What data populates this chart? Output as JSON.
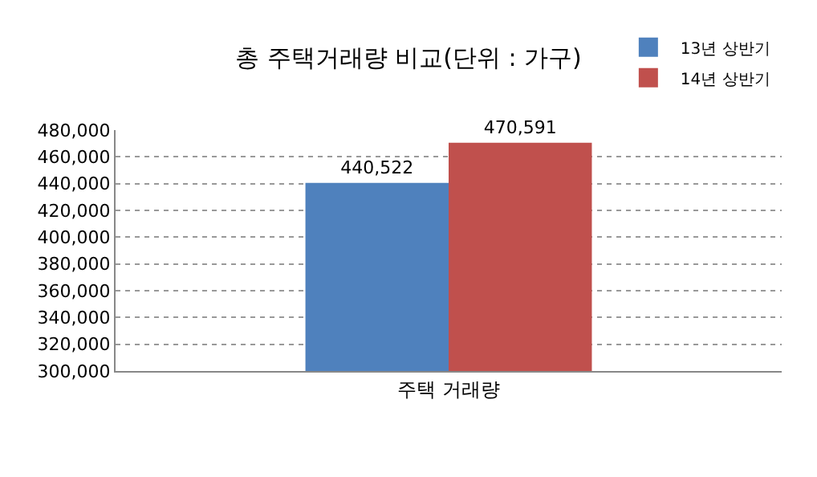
{
  "chart_data": {
    "type": "bar",
    "title": "총 주택거래량 비교(단위 : 가구)",
    "categories": [
      "주택 거래량"
    ],
    "series": [
      {
        "name": "13년 상반기",
        "color": "#4f81bd",
        "values": [
          440522
        ],
        "value_labels": [
          "440,522"
        ]
      },
      {
        "name": "14년 상반기",
        "color": "#c0504d",
        "values": [
          470591
        ],
        "value_labels": [
          "470,591"
        ]
      }
    ],
    "ylim": [
      300000,
      480000
    ],
    "yticks": [
      {
        "value": 300000,
        "label": "300,000"
      },
      {
        "value": 320000,
        "label": "320,000"
      },
      {
        "value": 340000,
        "label": "340,000"
      },
      {
        "value": 360000,
        "label": "360,000"
      },
      {
        "value": 380000,
        "label": "380,000"
      },
      {
        "value": 400000,
        "label": "400,000"
      },
      {
        "value": 420000,
        "label": "420,000"
      },
      {
        "value": 440000,
        "label": "440,000"
      },
      {
        "value": 460000,
        "label": "460,000"
      },
      {
        "value": 480000,
        "label": "480,000"
      }
    ],
    "grid": "y",
    "legend": "top right"
  }
}
